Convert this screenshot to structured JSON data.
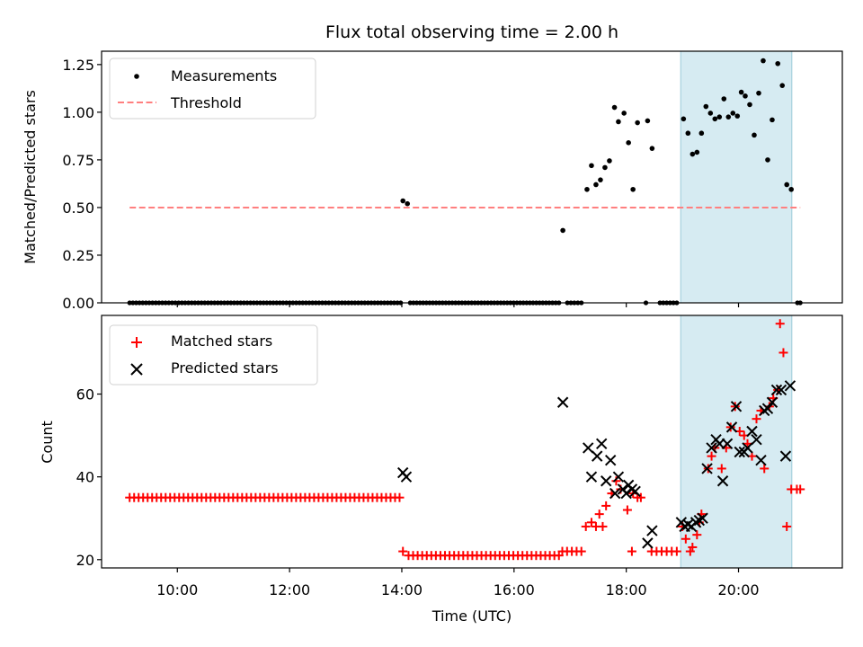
{
  "chart_data": [
    {
      "type": "scatter",
      "title": "Flux total observing time = 2.00 h",
      "xlabel": "",
      "ylabel": "Matched/Predicted stars",
      "xlim": [
        8.65,
        21.85
      ],
      "ylim": [
        0.0,
        1.32
      ],
      "yticks": [
        0.0,
        0.25,
        0.5,
        0.75,
        1.0,
        1.25
      ],
      "ytick_labels": [
        "0.00",
        "0.25",
        "0.50",
        "0.75",
        "1.00",
        "1.25"
      ],
      "xticks": [
        10,
        12,
        14,
        16,
        18,
        20
      ],
      "xtick_labels": [
        "",
        "",
        "",
        "",
        "",
        ""
      ],
      "grid": false,
      "legend": {
        "position": "top-left",
        "entries": [
          {
            "label": "Measurements",
            "marker": "dot",
            "color": "#000000"
          },
          {
            "label": "Threshold",
            "marker": "dashed-line",
            "color": "#ff7f7f"
          }
        ]
      },
      "highlight_span": {
        "x0": 18.97,
        "x1": 20.95,
        "color": "#add8e6"
      },
      "threshold": {
        "y": 0.5,
        "x0": 9.15,
        "x1": 21.1,
        "label": "Threshold"
      },
      "series": [
        {
          "name": "Measurements",
          "color": "#000000",
          "zero_ranges": [
            [
              9.15,
              13.98
            ],
            [
              14.15,
              16.8
            ],
            [
              16.95,
              17.2
            ],
            [
              18.35,
              18.35
            ],
            [
              18.6,
              18.9
            ],
            [
              21.05,
              21.1
            ]
          ],
          "points": [
            [
              14.02,
              0.535
            ],
            [
              14.1,
              0.52
            ],
            [
              16.87,
              0.38
            ],
            [
              17.3,
              0.595
            ],
            [
              17.38,
              0.72
            ],
            [
              17.46,
              0.62
            ],
            [
              17.54,
              0.645
            ],
            [
              17.62,
              0.71
            ],
            [
              17.7,
              0.745
            ],
            [
              17.79,
              1.025
            ],
            [
              17.86,
              0.95
            ],
            [
              17.96,
              0.995
            ],
            [
              18.04,
              0.84
            ],
            [
              18.12,
              0.595
            ],
            [
              18.2,
              0.945
            ],
            [
              18.38,
              0.955
            ],
            [
              18.46,
              0.81
            ],
            [
              19.02,
              0.965
            ],
            [
              19.1,
              0.89
            ],
            [
              19.18,
              0.78
            ],
            [
              19.26,
              0.79
            ],
            [
              19.34,
              0.89
            ],
            [
              19.42,
              1.03
            ],
            [
              19.5,
              0.995
            ],
            [
              19.58,
              0.965
            ],
            [
              19.66,
              0.975
            ],
            [
              19.74,
              1.07
            ],
            [
              19.82,
              0.975
            ],
            [
              19.9,
              0.995
            ],
            [
              19.98,
              0.98
            ],
            [
              20.05,
              1.105
            ],
            [
              20.12,
              1.085
            ],
            [
              20.2,
              1.04
            ],
            [
              20.28,
              0.88
            ],
            [
              20.36,
              1.1
            ],
            [
              20.44,
              1.27
            ],
            [
              20.52,
              0.75
            ],
            [
              20.6,
              0.96
            ],
            [
              20.7,
              1.255
            ],
            [
              20.78,
              1.14
            ],
            [
              20.86,
              0.62
            ],
            [
              20.94,
              0.595
            ]
          ]
        }
      ]
    },
    {
      "type": "scatter",
      "title": "",
      "xlabel": "Time (UTC)",
      "ylabel": "Count",
      "xlim": [
        8.65,
        21.85
      ],
      "ylim": [
        18,
        79
      ],
      "yticks": [
        20,
        40,
        60
      ],
      "ytick_labels": [
        "20",
        "40",
        "60"
      ],
      "xticks": [
        10,
        12,
        14,
        16,
        18,
        20
      ],
      "xtick_labels": [
        "10:00",
        "12:00",
        "14:00",
        "16:00",
        "18:00",
        "20:00"
      ],
      "grid": false,
      "legend": {
        "position": "top-left",
        "entries": [
          {
            "label": "Matched stars",
            "marker": "plus",
            "color": "#ff0000"
          },
          {
            "label": "Predicted stars",
            "marker": "x",
            "color": "#000000"
          }
        ]
      },
      "highlight_span": {
        "x0": 18.97,
        "x1": 20.95,
        "color": "#add8e6"
      },
      "series": [
        {
          "name": "Matched stars",
          "color": "#ff0000",
          "runs": [
            {
              "x0": 9.15,
              "x1": 13.96,
              "n": 61,
              "y": 35
            },
            {
              "x0": 14.12,
              "x1": 16.8,
              "n": 34,
              "y": 21
            },
            {
              "x0": 16.86,
              "x1": 17.2,
              "n": 5,
              "y": 22
            },
            {
              "x0": 18.45,
              "x1": 18.9,
              "n": 6,
              "y": 22
            }
          ],
          "points": [
            [
              14.02,
              22
            ],
            [
              17.28,
              28
            ],
            [
              17.38,
              29
            ],
            [
              17.46,
              28
            ],
            [
              17.58,
              28
            ],
            [
              17.52,
              31
            ],
            [
              17.64,
              33
            ],
            [
              17.74,
              36
            ],
            [
              17.82,
              39
            ],
            [
              17.9,
              37
            ],
            [
              18.02,
              32
            ],
            [
              18.1,
              22
            ],
            [
              18.12,
              36
            ],
            [
              18.2,
              35
            ],
            [
              18.26,
              35
            ],
            [
              19.0,
              28
            ],
            [
              19.06,
              25
            ],
            [
              19.14,
              22
            ],
            [
              19.18,
              23
            ],
            [
              19.26,
              26
            ],
            [
              19.3,
              29
            ],
            [
              19.34,
              31
            ],
            [
              19.46,
              42
            ],
            [
              19.52,
              45
            ],
            [
              19.58,
              47
            ],
            [
              19.7,
              42
            ],
            [
              19.78,
              47
            ],
            [
              19.86,
              52
            ],
            [
              19.94,
              57
            ],
            [
              20.02,
              51
            ],
            [
              20.1,
              50
            ],
            [
              20.16,
              48
            ],
            [
              20.24,
              45
            ],
            [
              20.32,
              54
            ],
            [
              20.4,
              56
            ],
            [
              20.46,
              42
            ],
            [
              20.55,
              57
            ],
            [
              20.62,
              59
            ],
            [
              20.7,
              61
            ],
            [
              20.74,
              77
            ],
            [
              20.8,
              70
            ],
            [
              20.86,
              28
            ],
            [
              20.94,
              37
            ],
            [
              21.04,
              37
            ],
            [
              21.1,
              37
            ]
          ]
        },
        {
          "name": "Predicted stars",
          "color": "#000000",
          "points": [
            [
              14.02,
              41
            ],
            [
              14.08,
              40
            ],
            [
              16.87,
              58
            ],
            [
              17.32,
              47
            ],
            [
              17.38,
              40
            ],
            [
              17.48,
              45
            ],
            [
              17.56,
              48
            ],
            [
              17.64,
              39
            ],
            [
              17.72,
              44
            ],
            [
              17.8,
              36
            ],
            [
              17.86,
              40
            ],
            [
              17.94,
              37
            ],
            [
              18.0,
              36
            ],
            [
              18.04,
              38
            ],
            [
              18.1,
              37
            ],
            [
              18.16,
              36.5
            ],
            [
              18.38,
              24
            ],
            [
              18.46,
              27
            ],
            [
              18.98,
              29
            ],
            [
              19.04,
              28
            ],
            [
              19.1,
              28.5
            ],
            [
              19.16,
              28
            ],
            [
              19.24,
              29
            ],
            [
              19.3,
              29.5
            ],
            [
              19.36,
              30
            ],
            [
              19.44,
              42
            ],
            [
              19.52,
              47
            ],
            [
              19.6,
              49
            ],
            [
              19.66,
              48
            ],
            [
              19.72,
              39
            ],
            [
              19.8,
              48
            ],
            [
              19.88,
              52
            ],
            [
              19.96,
              57
            ],
            [
              20.02,
              46
            ],
            [
              20.1,
              46
            ],
            [
              20.16,
              47
            ],
            [
              20.24,
              51
            ],
            [
              20.32,
              49
            ],
            [
              20.4,
              44
            ],
            [
              20.46,
              56
            ],
            [
              20.52,
              56.5
            ],
            [
              20.6,
              58
            ],
            [
              20.68,
              61
            ],
            [
              20.76,
              61
            ],
            [
              20.84,
              45
            ],
            [
              20.92,
              62
            ]
          ]
        }
      ]
    }
  ]
}
